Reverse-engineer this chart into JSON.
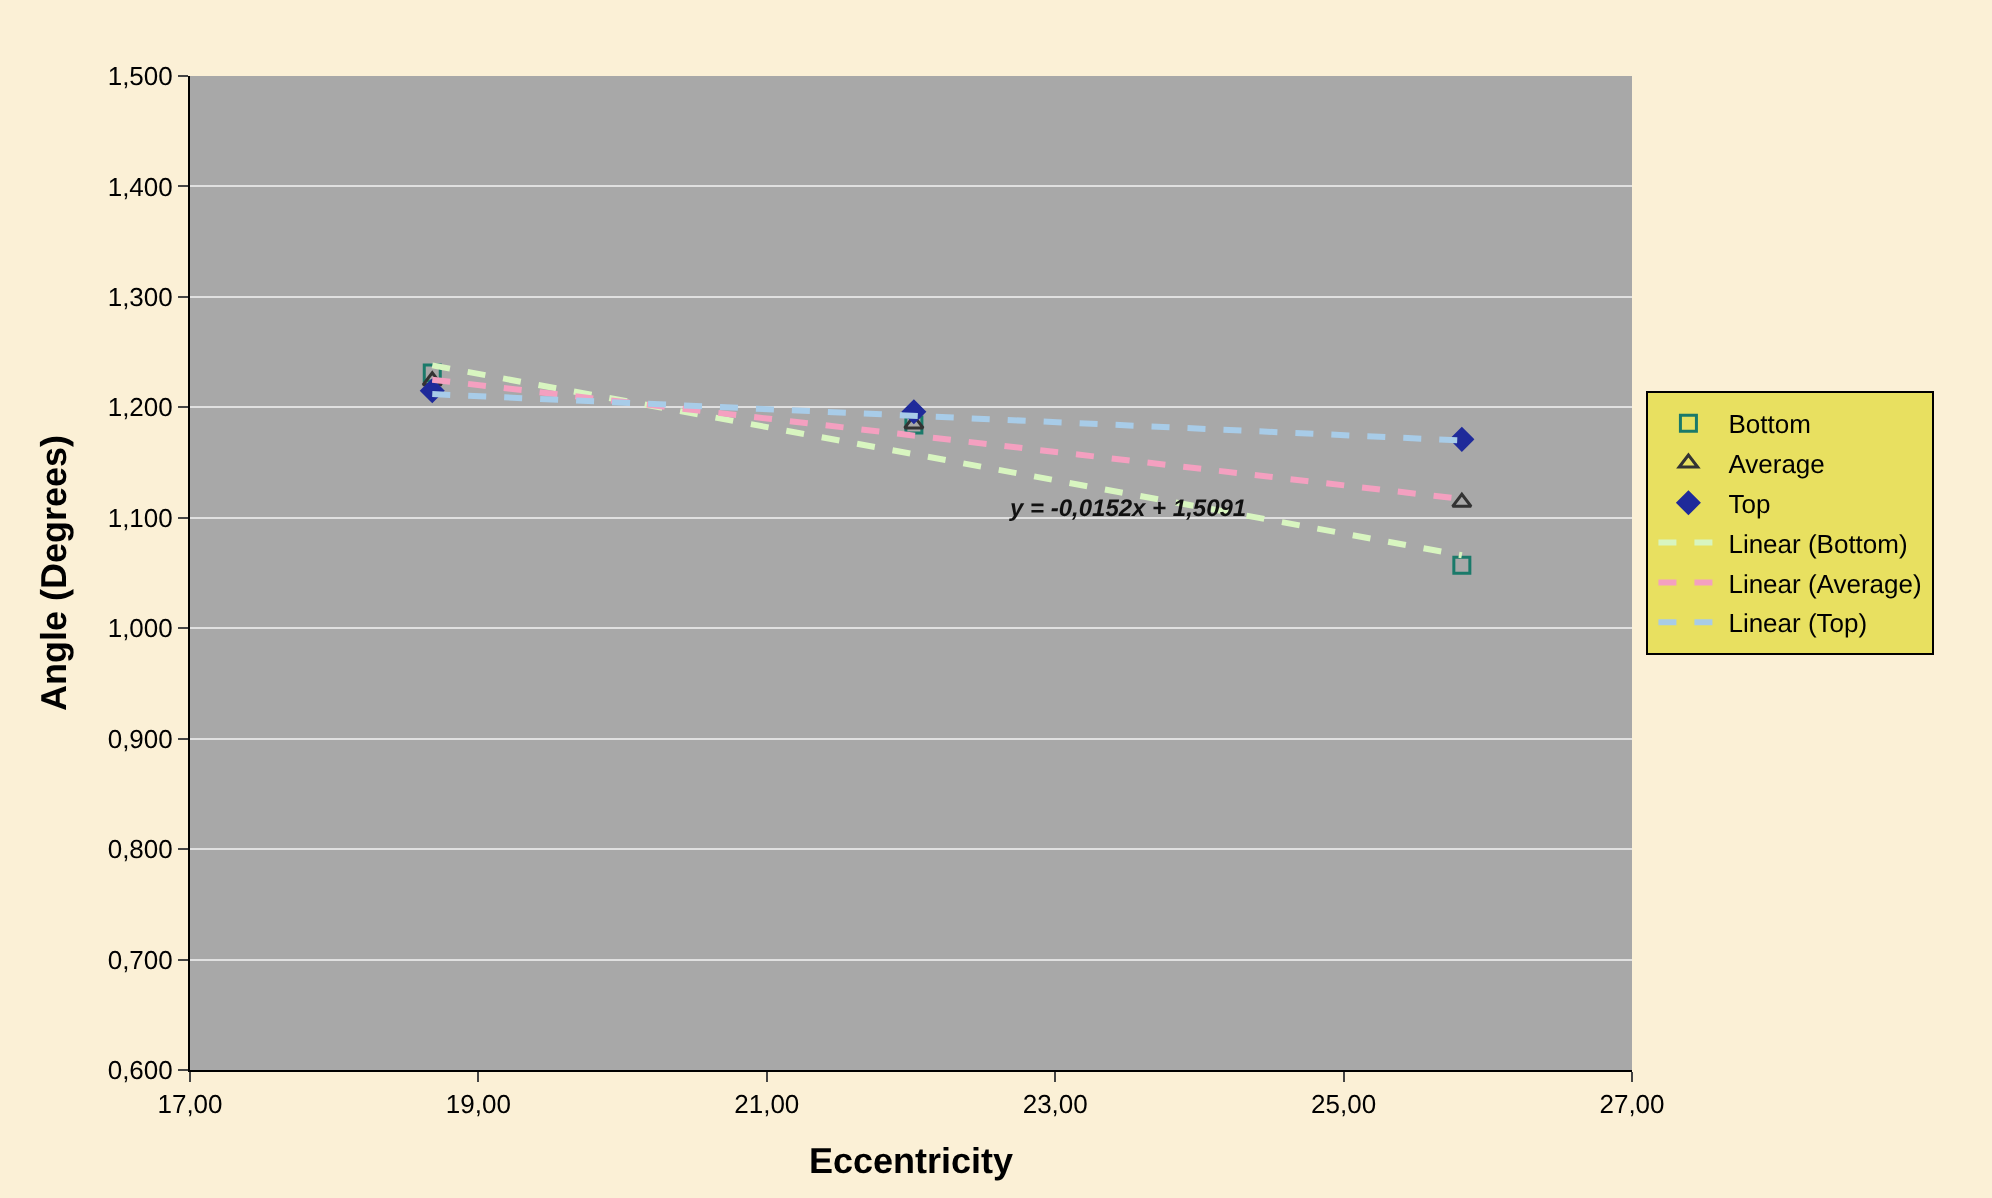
{
  "chart_data": {
    "type": "scatter",
    "xlabel": "Eccentricity",
    "ylabel": "Angle (Degrees)",
    "xlim": [
      17,
      27
    ],
    "xticks": [
      {
        "value": 17,
        "label": "17,00"
      },
      {
        "value": 19,
        "label": "19,00"
      },
      {
        "value": 21,
        "label": "21,00"
      },
      {
        "value": 23,
        "label": "23,00"
      },
      {
        "value": 25,
        "label": "25,00"
      },
      {
        "value": 27,
        "label": "27,00"
      }
    ],
    "ylim": [
      0.6,
      1.5
    ],
    "yticks": [
      {
        "value": 0.6,
        "label": "0,600"
      },
      {
        "value": 0.7,
        "label": "0,700"
      },
      {
        "value": 0.8,
        "label": "0,800"
      },
      {
        "value": 0.9,
        "label": "0,900"
      },
      {
        "value": 1.0,
        "label": "1,000"
      },
      {
        "value": 1.1,
        "label": "1,100"
      },
      {
        "value": 1.2,
        "label": "1,200"
      },
      {
        "value": 1.3,
        "label": "1,300"
      },
      {
        "value": 1.4,
        "label": "1,400"
      },
      {
        "value": 1.5,
        "label": "1,500"
      }
    ],
    "grid": "y",
    "legend": "right",
    "series": [
      {
        "name": "Bottom",
        "marker": "square",
        "color": "#1a7a6a",
        "x": [
          18.68,
          22.02,
          25.82
        ],
        "values": [
          1.231,
          1.184,
          1.057
        ]
      },
      {
        "name": "Average",
        "marker": "triangle",
        "color": "#333333",
        "x": [
          18.68,
          22.02,
          25.82
        ],
        "values": [
          1.224,
          1.185,
          1.114
        ]
      },
      {
        "name": "Top",
        "marker": "diamond",
        "color": "#1f2a9a",
        "x": [
          18.68,
          22.02,
          25.82
        ],
        "values": [
          1.215,
          1.196,
          1.171
        ]
      },
      {
        "name": "Linear (Bottom)",
        "type": "line",
        "line_style": "dashed",
        "color": "#d8f5c0",
        "x": [
          18.68,
          25.82
        ],
        "values": [
          1.238,
          1.066
        ]
      },
      {
        "name": "Linear (Average)",
        "type": "line",
        "line_style": "dashed",
        "color": "#f4a0c0",
        "x": [
          18.68,
          25.82
        ],
        "values": [
          1.225,
          1.117
        ]
      },
      {
        "name": "Linear (Top)",
        "type": "line",
        "line_style": "dashed",
        "color": "#a8cce8",
        "x": [
          18.68,
          25.82
        ],
        "values": [
          1.212,
          1.17
        ]
      }
    ],
    "annotations": [
      "y = -0,0152x + 1,5091"
    ]
  }
}
